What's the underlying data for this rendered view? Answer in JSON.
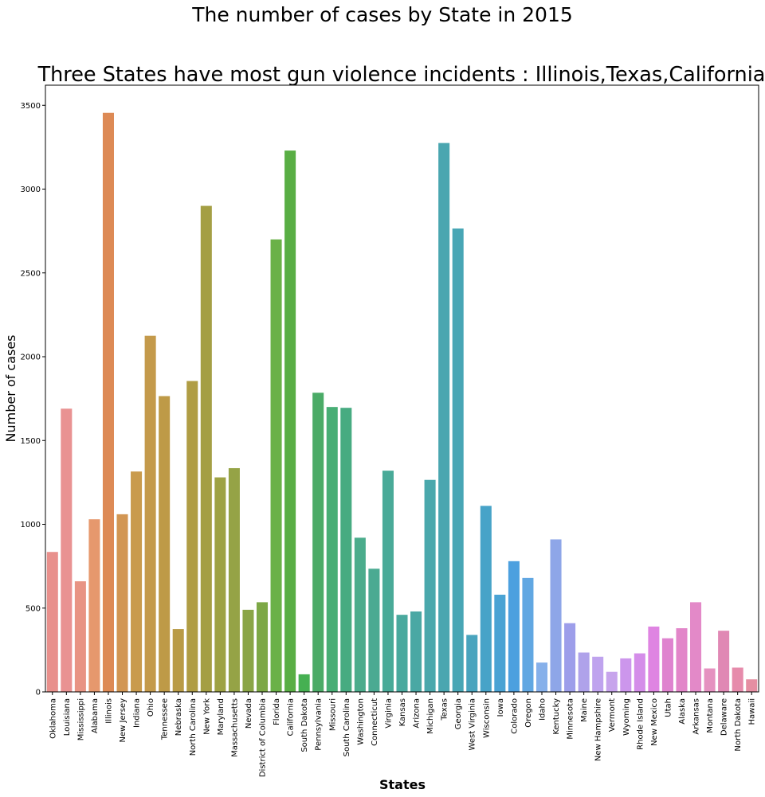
{
  "suptitle": "The number of cases by State in 2015",
  "chart_data": {
    "type": "bar",
    "title": "Three States have most gun violence incidents : Illinois,Texas,California",
    "xlabel": "States",
    "ylabel": "Number of cases",
    "ylim": [
      0,
      3620
    ],
    "yticks": [
      0,
      500,
      1000,
      1500,
      2000,
      2500,
      3000,
      3500
    ],
    "grid": false,
    "legend": "none",
    "categories": [
      "Oklahoma",
      "Louisiana",
      "Mississippi",
      "Alabama",
      "Illinois",
      "New Jersey",
      "Indiana",
      "Ohio",
      "Tennessee",
      "Nebraska",
      "North Carolina",
      "New York",
      "Maryland",
      "Massachusetts",
      "Nevada",
      "District of Columbia",
      "Florida",
      "California",
      "South Dakota",
      "Pennsylvania",
      "Missouri",
      "South Carolina",
      "Washington",
      "Connecticut",
      "Virginia",
      "Kansas",
      "Arizona",
      "Michigan",
      "Texas",
      "Georgia",
      "West Virginia",
      "Wisconsin",
      "Iowa",
      "Colorado",
      "Oregon",
      "Idaho",
      "Kentucky",
      "Minnesota",
      "Maine",
      "New Hampshire",
      "Vermont",
      "Wyoming",
      "Rhode Island",
      "New Mexico",
      "Utah",
      "Alaska",
      "Arkansas",
      "Montana",
      "Delaware",
      "North Dakota",
      "Hawaii"
    ],
    "values": [
      835,
      1690,
      660,
      1030,
      3455,
      1060,
      1315,
      2125,
      1765,
      375,
      1855,
      2900,
      1280,
      1335,
      490,
      535,
      2700,
      3230,
      105,
      1785,
      1700,
      1695,
      920,
      735,
      1320,
      460,
      480,
      1265,
      3275,
      2765,
      340,
      1110,
      580,
      780,
      680,
      175,
      910,
      410,
      235,
      210,
      120,
      200,
      230,
      390,
      320,
      380,
      535,
      140,
      365,
      145,
      75
    ],
    "colors": [
      "#e8908c",
      "#e99292",
      "#e89484",
      "#e6986d",
      "#dd8a55",
      "#d29653",
      "#c99b4d",
      "#c49a4b",
      "#be9a47",
      "#b99b46",
      "#b09d44",
      "#a49f44",
      "#9ea244",
      "#95a346",
      "#8aa546",
      "#7da846",
      "#6ab148",
      "#59ae44",
      "#46b052",
      "#4bab67",
      "#48ae75",
      "#47ab81",
      "#4bac8c",
      "#4baa92",
      "#49aa98",
      "#4aa99e",
      "#4aa8a4",
      "#4aa8ac",
      "#4aa6b0",
      "#48a6b5",
      "#49a4be",
      "#47a3c8",
      "#4aa3d4",
      "#4ca0df",
      "#61a7e2",
      "#86b0ea",
      "#8ea6e8",
      "#9d9eea",
      "#afa2ea",
      "#bfa3ee",
      "#c7a4ec",
      "#cc96ec",
      "#d48de9",
      "#df84e2",
      "#df83cf",
      "#e286c9",
      "#e389c8",
      "#e591c0",
      "#e088b4",
      "#e68bab",
      "#e58ea2"
    ]
  }
}
